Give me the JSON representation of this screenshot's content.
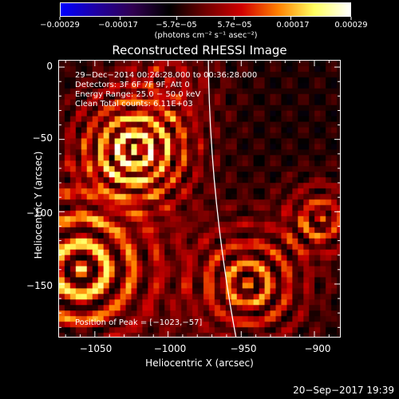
{
  "chart_data": {
    "type": "heatmap",
    "title": "Reconstructed RHESSI Image",
    "xlabel": "Heliocentric X (arcsec)",
    "ylabel": "Heliocentric Y (arcsec)",
    "xlim": [
      -1075,
      -882
    ],
    "ylim": [
      -187,
      5
    ],
    "xticks": [
      {
        "value": -1050,
        "label": "−1050"
      },
      {
        "value": -1000,
        "label": "−1000"
      },
      {
        "value": -950,
        "label": "−950"
      },
      {
        "value": -900,
        "label": "−900"
      }
    ],
    "yticks": [
      {
        "value": 0,
        "label": "0"
      },
      {
        "value": -50,
        "label": "−50"
      },
      {
        "value": -100,
        "label": "−100"
      },
      {
        "value": -150,
        "label": "−150"
      }
    ],
    "colorbar": {
      "ticks": [
        {
          "value": -0.00029,
          "label": "−0.00029"
        },
        {
          "value": -0.00017,
          "label": "−0.00017"
        },
        {
          "value": -5.7e-05,
          "label": "−5.7e−05"
        },
        {
          "value": 5.7e-05,
          "label": "5.7e−05"
        },
        {
          "value": 0.00017,
          "label": "0.00017"
        },
        {
          "value": 0.00029,
          "label": "0.00029"
        }
      ],
      "range": [
        -0.00029,
        0.00029
      ],
      "unit": "(photons cm⁻² s⁻¹ asec⁻²)",
      "colors": [
        "#0000ff",
        "#2000a0",
        "#300050",
        "#000000",
        "#700000",
        "#d00000",
        "#ff8000",
        "#ffff60",
        "#ffffff"
      ]
    },
    "annotations": {
      "time_range": "29−Dec−2014 00:26:28.000 to 00:36:28.000",
      "detectors": "Detectors: 3F 6F 7F 9F, Att 0",
      "energy_range": "Energy Range: 25.0 − 50.0 keV",
      "clean": "Clean     Total counts: 6.11E+03",
      "peak": "Position of Peak = [−1023,−57]"
    },
    "peak": {
      "x": -1023,
      "y": -57
    },
    "limb_color": "#ffffff"
  },
  "footer": "20−Sep−2017 19:39"
}
